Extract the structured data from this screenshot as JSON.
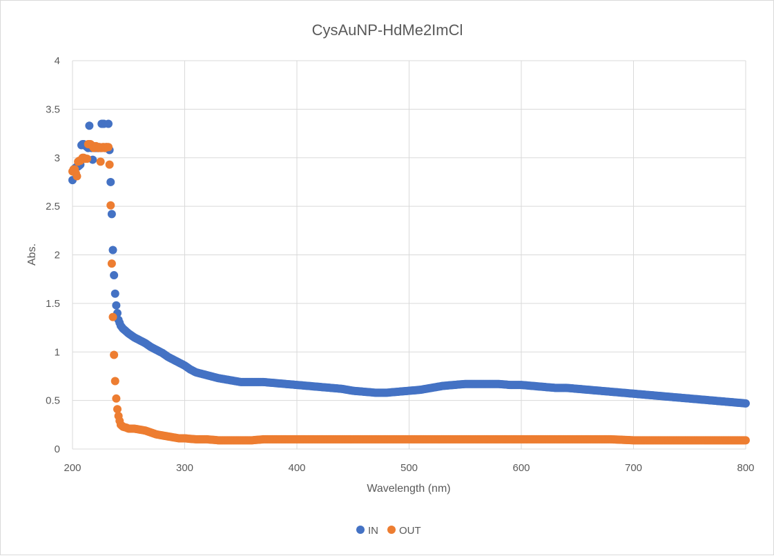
{
  "chart_data": {
    "type": "scatter",
    "title": "CysAuNP-HdMe2ImCl",
    "xlabel": "Wavelength (nm)",
    "ylabel": "Abs.",
    "xlim": [
      200,
      800
    ],
    "ylim": [
      0,
      4
    ],
    "xticks": [
      "200",
      "300",
      "400",
      "500",
      "600",
      "700",
      "800"
    ],
    "yticks": [
      "0",
      "0.5",
      "1",
      "1.5",
      "2",
      "2.5",
      "3",
      "3.5",
      "4"
    ],
    "grid": true,
    "legend_position": "bottom",
    "series": [
      {
        "name": "IN",
        "color": "#4472c4",
        "points": [
          [
            200,
            2.77
          ],
          [
            201,
            2.88
          ],
          [
            202,
            2.89
          ],
          [
            203,
            2.9
          ],
          [
            204,
            2.91
          ],
          [
            205,
            2.91
          ],
          [
            206,
            2.92
          ],
          [
            207,
            2.93
          ],
          [
            208,
            3.13
          ],
          [
            209,
            3.14
          ],
          [
            210,
            3.14
          ],
          [
            211,
            3.13
          ],
          [
            212,
            3.12
          ],
          [
            213,
            3.11
          ],
          [
            214,
            3.1
          ],
          [
            215,
            3.33
          ],
          [
            216,
            3.11
          ],
          [
            217,
            3.1
          ],
          [
            218,
            2.98
          ],
          [
            219,
            3.12
          ],
          [
            220,
            3.1
          ],
          [
            221,
            3.11
          ],
          [
            222,
            3.1
          ],
          [
            223,
            3.1
          ],
          [
            224,
            3.11
          ],
          [
            225,
            3.1
          ],
          [
            226,
            3.35
          ],
          [
            227,
            3.35
          ],
          [
            228,
            3.35
          ],
          [
            229,
            3.1
          ],
          [
            230,
            3.11
          ],
          [
            231,
            3.1
          ],
          [
            232,
            3.35
          ],
          [
            233,
            3.08
          ],
          [
            234,
            2.75
          ],
          [
            235,
            2.42
          ],
          [
            236,
            2.05
          ],
          [
            237,
            1.79
          ],
          [
            238,
            1.6
          ],
          [
            239,
            1.48
          ],
          [
            240,
            1.4
          ],
          [
            241,
            1.33
          ],
          [
            242,
            1.3
          ],
          [
            243,
            1.27
          ],
          [
            245,
            1.24
          ],
          [
            248,
            1.21
          ],
          [
            250,
            1.19
          ],
          [
            255,
            1.15
          ],
          [
            260,
            1.12
          ],
          [
            265,
            1.09
          ],
          [
            270,
            1.05
          ],
          [
            275,
            1.02
          ],
          [
            280,
            0.99
          ],
          [
            285,
            0.95
          ],
          [
            290,
            0.92
          ],
          [
            295,
            0.89
          ],
          [
            300,
            0.86
          ],
          [
            305,
            0.82
          ],
          [
            310,
            0.79
          ],
          [
            320,
            0.76
          ],
          [
            330,
            0.73
          ],
          [
            340,
            0.71
          ],
          [
            350,
            0.69
          ],
          [
            360,
            0.69
          ],
          [
            370,
            0.69
          ],
          [
            380,
            0.68
          ],
          [
            390,
            0.67
          ],
          [
            400,
            0.66
          ],
          [
            410,
            0.65
          ],
          [
            420,
            0.64
          ],
          [
            430,
            0.63
          ],
          [
            440,
            0.62
          ],
          [
            450,
            0.6
          ],
          [
            460,
            0.59
          ],
          [
            470,
            0.58
          ],
          [
            480,
            0.58
          ],
          [
            490,
            0.59
          ],
          [
            500,
            0.6
          ],
          [
            510,
            0.61
          ],
          [
            520,
            0.63
          ],
          [
            530,
            0.65
          ],
          [
            540,
            0.66
          ],
          [
            550,
            0.67
          ],
          [
            560,
            0.67
          ],
          [
            570,
            0.67
          ],
          [
            580,
            0.67
          ],
          [
            590,
            0.66
          ],
          [
            600,
            0.66
          ],
          [
            610,
            0.65
          ],
          [
            620,
            0.64
          ],
          [
            630,
            0.63
          ],
          [
            640,
            0.63
          ],
          [
            650,
            0.62
          ],
          [
            660,
            0.61
          ],
          [
            670,
            0.6
          ],
          [
            680,
            0.59
          ],
          [
            690,
            0.58
          ],
          [
            700,
            0.57
          ],
          [
            710,
            0.56
          ],
          [
            720,
            0.55
          ],
          [
            730,
            0.54
          ],
          [
            740,
            0.53
          ],
          [
            750,
            0.52
          ],
          [
            760,
            0.51
          ],
          [
            770,
            0.5
          ],
          [
            780,
            0.49
          ],
          [
            790,
            0.48
          ],
          [
            800,
            0.47
          ]
        ]
      },
      {
        "name": "OUT",
        "color": "#ed7d31",
        "points": [
          [
            200,
            2.86
          ],
          [
            201,
            2.88
          ],
          [
            202,
            2.88
          ],
          [
            203,
            2.84
          ],
          [
            204,
            2.81
          ],
          [
            205,
            2.96
          ],
          [
            206,
            2.97
          ],
          [
            207,
            2.97
          ],
          [
            208,
            2.98
          ],
          [
            209,
            3.0
          ],
          [
            210,
            3.0
          ],
          [
            211,
            2.99
          ],
          [
            212,
            2.99
          ],
          [
            213,
            2.99
          ],
          [
            214,
            3.14
          ],
          [
            215,
            3.14
          ],
          [
            216,
            3.14
          ],
          [
            217,
            3.13
          ],
          [
            218,
            3.12
          ],
          [
            219,
            3.1
          ],
          [
            220,
            3.11
          ],
          [
            221,
            3.12
          ],
          [
            222,
            3.11
          ],
          [
            223,
            3.1
          ],
          [
            224,
            3.11
          ],
          [
            225,
            2.96
          ],
          [
            226,
            3.1
          ],
          [
            227,
            3.11
          ],
          [
            228,
            3.11
          ],
          [
            229,
            3.1
          ],
          [
            230,
            3.11
          ],
          [
            231,
            3.11
          ],
          [
            232,
            3.11
          ],
          [
            233,
            2.93
          ],
          [
            234,
            2.51
          ],
          [
            235,
            1.91
          ],
          [
            236,
            1.36
          ],
          [
            237,
            0.97
          ],
          [
            238,
            0.7
          ],
          [
            239,
            0.52
          ],
          [
            240,
            0.41
          ],
          [
            241,
            0.34
          ],
          [
            242,
            0.29
          ],
          [
            243,
            0.25
          ],
          [
            245,
            0.23
          ],
          [
            248,
            0.22
          ],
          [
            250,
            0.21
          ],
          [
            255,
            0.21
          ],
          [
            260,
            0.2
          ],
          [
            265,
            0.19
          ],
          [
            270,
            0.17
          ],
          [
            275,
            0.15
          ],
          [
            280,
            0.14
          ],
          [
            285,
            0.13
          ],
          [
            290,
            0.12
          ],
          [
            295,
            0.11
          ],
          [
            300,
            0.11
          ],
          [
            310,
            0.1
          ],
          [
            320,
            0.1
          ],
          [
            330,
            0.09
          ],
          [
            340,
            0.09
          ],
          [
            350,
            0.09
          ],
          [
            360,
            0.09
          ],
          [
            370,
            0.1
          ],
          [
            380,
            0.1
          ],
          [
            390,
            0.1
          ],
          [
            400,
            0.1
          ],
          [
            420,
            0.1
          ],
          [
            440,
            0.1
          ],
          [
            460,
            0.1
          ],
          [
            480,
            0.1
          ],
          [
            500,
            0.1
          ],
          [
            520,
            0.1
          ],
          [
            540,
            0.1
          ],
          [
            560,
            0.1
          ],
          [
            580,
            0.1
          ],
          [
            600,
            0.1
          ],
          [
            620,
            0.1
          ],
          [
            640,
            0.1
          ],
          [
            660,
            0.1
          ],
          [
            680,
            0.1
          ],
          [
            700,
            0.09
          ],
          [
            720,
            0.09
          ],
          [
            740,
            0.09
          ],
          [
            760,
            0.09
          ],
          [
            780,
            0.09
          ],
          [
            800,
            0.09
          ]
        ]
      }
    ]
  }
}
